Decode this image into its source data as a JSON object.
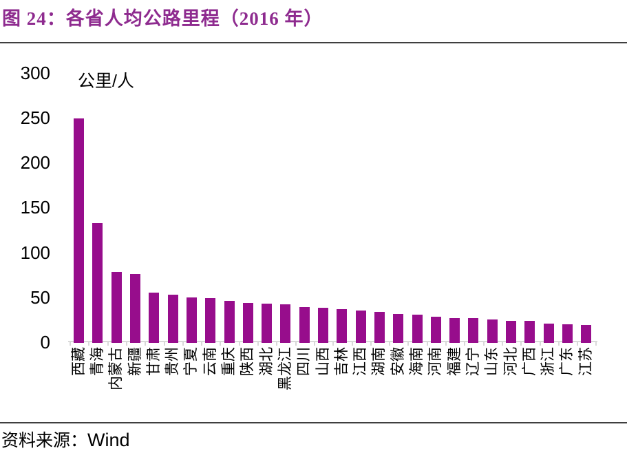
{
  "header": {
    "title": "图 24：各省人均公路里程（2016 年）"
  },
  "chart_data": {
    "type": "bar",
    "title": "各省人均公路里程（2016 年）",
    "unit_label": "公里/人",
    "xlabel": "",
    "ylabel": "公里/人",
    "ylim": [
      0,
      300
    ],
    "yticks": [
      0,
      50,
      100,
      150,
      200,
      250,
      300
    ],
    "grid": false,
    "legend": "none",
    "bar_color": "#970D8C",
    "categories": [
      "西藏",
      "青海",
      "内蒙古",
      "新疆",
      "甘肃",
      "贵州",
      "宁夏",
      "云南",
      "重庆",
      "陕西",
      "湖北",
      "黑龙江",
      "四川",
      "山西",
      "吉林",
      "江西",
      "湖南",
      "安徽",
      "海南",
      "河南",
      "福建",
      "辽宁",
      "山东",
      "河北",
      "广西",
      "浙江",
      "广东",
      "江苏"
    ],
    "values": [
      249,
      133,
      78,
      76,
      55,
      53,
      50,
      49,
      46,
      44,
      43,
      42,
      39,
      38,
      37,
      35,
      34,
      31.5,
      30.5,
      28,
      27.2,
      26.6,
      25.3,
      24,
      23.5,
      21,
      20,
      19
    ]
  },
  "footer": {
    "source_label": "资料来源：",
    "source_value": "Wind"
  },
  "colors": {
    "bar": "#970D8C",
    "title": "#8E2B8F",
    "rule": "#3F3F3F",
    "axis": "#D9D9D9",
    "text": "#000000"
  }
}
